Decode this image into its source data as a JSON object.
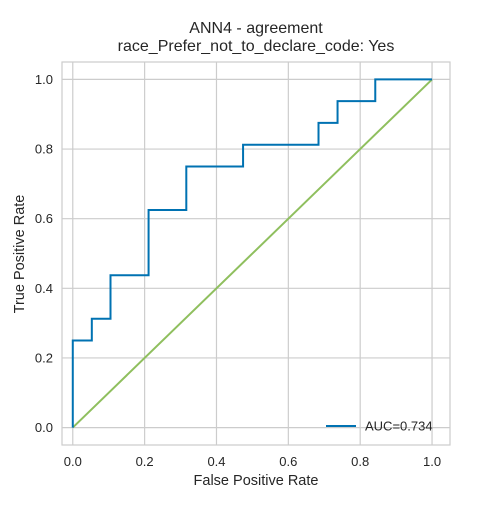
{
  "chart_data": {
    "type": "line",
    "title": "ANN4 - agreement",
    "subtitle": "race_Prefer_not_to_declare_code: Yes",
    "xlabel": "False Positive Rate",
    "ylabel": "True Positive Rate",
    "xlim": [
      -0.03,
      1.05
    ],
    "ylim": [
      -0.05,
      1.05
    ],
    "xticks": [
      0.0,
      0.2,
      0.4,
      0.6,
      0.8,
      1.0
    ],
    "yticks": [
      0.0,
      0.2,
      0.4,
      0.6,
      0.8,
      1.0
    ],
    "xtick_labels": [
      "0.0",
      "0.2",
      "0.4",
      "0.6",
      "0.8",
      "1.0"
    ],
    "ytick_labels": [
      "0.0",
      "0.2",
      "0.4",
      "0.6",
      "0.8",
      "1.0"
    ],
    "grid": true,
    "legend_position": "lower-right",
    "series": [
      {
        "name": "AUC=0.734",
        "color": "#0072b2",
        "x": [
          0.0,
          0.0,
          0.053,
          0.053,
          0.105,
          0.105,
          0.211,
          0.211,
          0.316,
          0.316,
          0.474,
          0.474,
          0.684,
          0.684,
          0.737,
          0.737,
          0.842,
          0.842,
          1.0
        ],
        "y": [
          0.0,
          0.25,
          0.25,
          0.3125,
          0.3125,
          0.4375,
          0.4375,
          0.625,
          0.625,
          0.75,
          0.75,
          0.8125,
          0.8125,
          0.875,
          0.875,
          0.9375,
          0.9375,
          1.0,
          1.0
        ]
      }
    ],
    "reference_line": {
      "color": "#8fbf5e",
      "x": [
        0.0,
        1.0
      ],
      "y": [
        0.0,
        1.0
      ]
    }
  }
}
